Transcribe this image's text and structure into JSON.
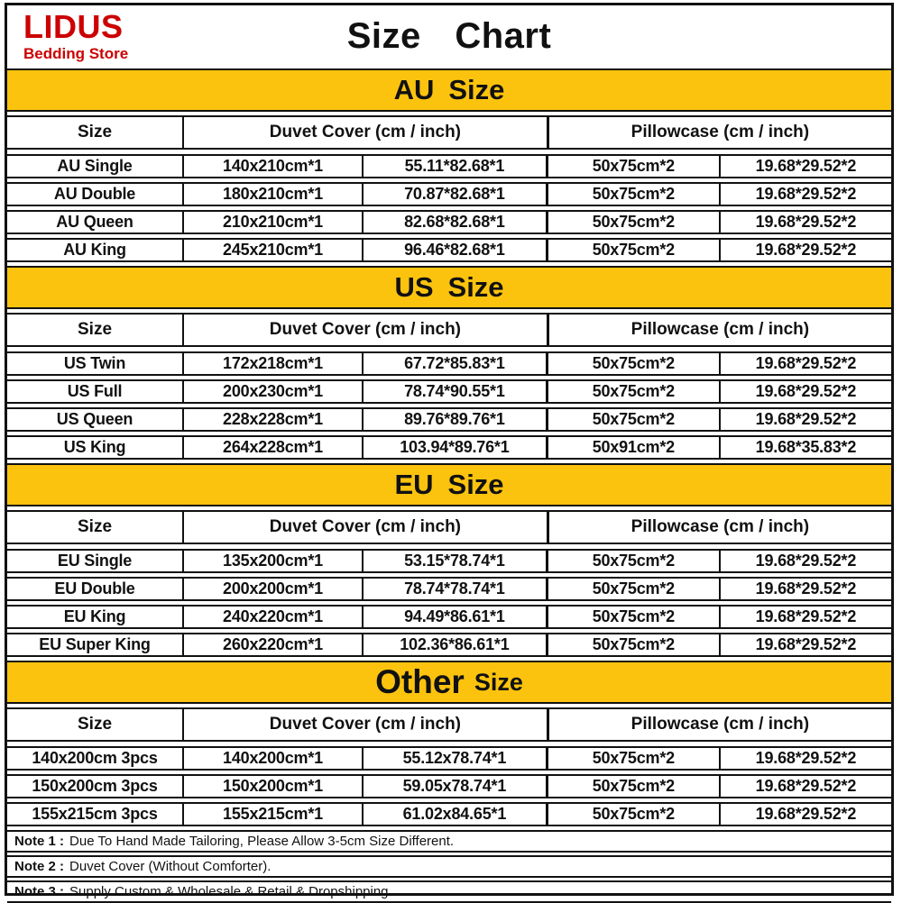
{
  "logo": {
    "name": "LIDUS",
    "subtitle": "Bedding Store"
  },
  "title": "Size Chart",
  "table_header": {
    "size": "Size",
    "duvet": "Duvet Cover (cm / inch)",
    "pillowcase": "Pillowcase (cm / inch)"
  },
  "sections": [
    {
      "banner_left": "AU",
      "banner_right": "Size",
      "rows": [
        [
          "AU Single",
          "140x210cm*1",
          "55.11*82.68*1",
          "50x75cm*2",
          "19.68*29.52*2"
        ],
        [
          "AU Double",
          "180x210cm*1",
          "70.87*82.68*1",
          "50x75cm*2",
          "19.68*29.52*2"
        ],
        [
          "AU Queen",
          "210x210cm*1",
          "82.68*82.68*1",
          "50x75cm*2",
          "19.68*29.52*2"
        ],
        [
          "AU King",
          "245x210cm*1",
          "96.46*82.68*1",
          "50x75cm*2",
          "19.68*29.52*2"
        ]
      ]
    },
    {
      "banner_left": "US",
      "banner_right": "Size",
      "rows": [
        [
          "US Twin",
          "172x218cm*1",
          "67.72*85.83*1",
          "50x75cm*2",
          "19.68*29.52*2"
        ],
        [
          "US Full",
          "200x230cm*1",
          "78.74*90.55*1",
          "50x75cm*2",
          "19.68*29.52*2"
        ],
        [
          "US Queen",
          "228x228cm*1",
          "89.76*89.76*1",
          "50x75cm*2",
          "19.68*29.52*2"
        ],
        [
          "US King",
          "264x228cm*1",
          "103.94*89.76*1",
          "50x91cm*2",
          "19.68*35.83*2"
        ]
      ]
    },
    {
      "banner_left": "EU",
      "banner_right": "Size",
      "rows": [
        [
          "EU Single",
          "135x200cm*1",
          "53.15*78.74*1",
          "50x75cm*2",
          "19.68*29.52*2"
        ],
        [
          "EU Double",
          "200x200cm*1",
          "78.74*78.74*1",
          "50x75cm*2",
          "19.68*29.52*2"
        ],
        [
          "EU King",
          "240x220cm*1",
          "94.49*86.61*1",
          "50x75cm*2",
          "19.68*29.52*2"
        ],
        [
          "EU Super King",
          "260x220cm*1",
          "102.36*86.61*1",
          "50x75cm*2",
          "19.68*29.52*2"
        ]
      ]
    },
    {
      "banner_left": "Other",
      "banner_right": "Size",
      "rows": [
        [
          "140x200cm 3pcs",
          "140x200cm*1",
          "55.12x78.74*1",
          "50x75cm*2",
          "19.68*29.52*2"
        ],
        [
          "150x200cm 3pcs",
          "150x200cm*1",
          "59.05x78.74*1",
          "50x75cm*2",
          "19.68*29.52*2"
        ],
        [
          "155x215cm 3pcs",
          "155x215cm*1",
          "61.02x84.65*1",
          "50x75cm*2",
          "19.68*29.52*2"
        ]
      ]
    }
  ],
  "notes": [
    {
      "label": "Note 1 :",
      "text": "Due To Hand Made Tailoring, Please Allow 3-5cm Size Different."
    },
    {
      "label": "Note 2 :",
      "text": "Duvet Cover (Without Comforter)."
    },
    {
      "label": "Note 3 :",
      "text": "Supply Custom & Wholesale & Retail & Dropshipping."
    }
  ],
  "colors": {
    "logo-red": "#cc0000",
    "banner-yellow": "#fcc30e",
    "line": "#111111",
    "text": "#111111"
  }
}
